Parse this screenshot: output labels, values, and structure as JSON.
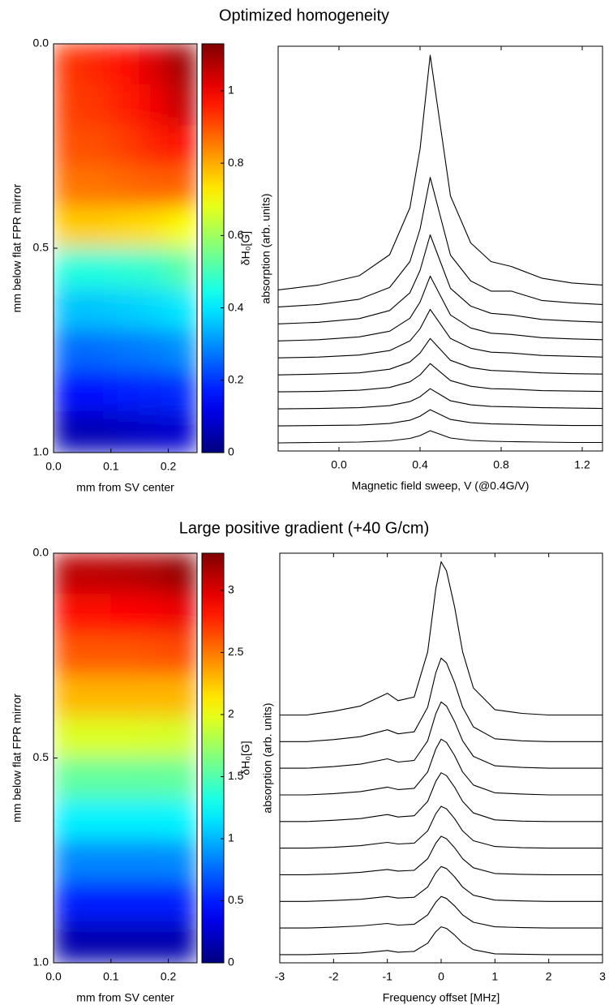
{
  "chart_data": [
    {
      "type": "heatmap",
      "title": "Optimized homogeneity",
      "xlabel": "mm from SV center",
      "ylabel": "mm below flat FPR mirror",
      "colormap": "jet",
      "y_inverted": true,
      "x": [
        0.025,
        0.075,
        0.125,
        0.175,
        0.225
      ],
      "y": [
        0.05,
        0.15,
        0.25,
        0.35,
        0.45,
        0.55,
        0.65,
        0.75,
        0.85,
        0.95
      ],
      "z": [
        [
          0.93,
          0.95,
          0.98,
          1.03,
          1.1
        ],
        [
          0.92,
          0.93,
          0.96,
          1.0,
          1.06
        ],
        [
          0.9,
          0.9,
          0.92,
          0.95,
          0.98
        ],
        [
          0.86,
          0.86,
          0.87,
          0.88,
          0.88
        ],
        [
          0.76,
          0.76,
          0.75,
          0.74,
          0.7
        ],
        [
          0.46,
          0.46,
          0.47,
          0.48,
          0.52
        ],
        [
          0.36,
          0.36,
          0.37,
          0.38,
          0.4
        ],
        [
          0.26,
          0.26,
          0.27,
          0.28,
          0.3
        ],
        [
          0.16,
          0.16,
          0.17,
          0.18,
          0.19
        ],
        [
          0.06,
          0.06,
          0.07,
          0.08,
          0.09
        ]
      ],
      "xlim": [
        0,
        0.25
      ],
      "xticks": [
        {
          "value": 0,
          "label": "0.0"
        },
        0.1,
        0.2
      ],
      "ylim": [
        0,
        1
      ],
      "yticks": [
        {
          "value": 0,
          "label": "0.0"
        },
        0.5,
        {
          "value": 1,
          "label": "1.0"
        }
      ],
      "colorbar": {
        "label": "δH₀[G]",
        "zlim": [
          0,
          1.13
        ],
        "ticks": [
          0,
          0.2,
          0.4,
          0.6,
          0.8,
          1
        ]
      }
    },
    {
      "type": "line",
      "xlabel": "Magnetic field sweep, V (@0.4G/V)",
      "ylabel": "absorption (arb. units)",
      "x": [
        -0.3,
        -0.1,
        0.1,
        0.25,
        0.35,
        0.4,
        0.45,
        0.5,
        0.55,
        0.65,
        0.75,
        0.85,
        1.0,
        1.15,
        1.3
      ],
      "xlim": [
        -0.3,
        1.3
      ],
      "xticks": [
        {
          "value": 0,
          "label": "0.0"
        },
        0.4,
        0.8,
        1.2
      ],
      "ylim": [
        0,
        100
      ],
      "series": [
        {
          "color": "#000000",
          "values": [
            2,
            2.1,
            2.2,
            2.5,
            3.1,
            3.8,
            5,
            4.1,
            3.2,
            2.6,
            2.4,
            2.3,
            2.2,
            2.1,
            2.1
          ]
        },
        {
          "color": "#000000",
          "values": [
            6.2,
            6.3,
            6.4,
            6.8,
            7.6,
            8.6,
            10.2,
            9,
            7.8,
            7,
            6.7,
            6.6,
            6.4,
            6.3,
            6.3
          ]
        },
        {
          "color": "#000000",
          "values": [
            10.4,
            10.5,
            10.7,
            11.2,
            12.2,
            13.4,
            15.4,
            13.9,
            12.4,
            11.4,
            11,
            10.9,
            10.7,
            10.6,
            10.5
          ]
        },
        {
          "color": "#000000",
          "values": [
            14.6,
            14.7,
            15,
            15.7,
            17.1,
            18.8,
            21.6,
            19.5,
            17.4,
            16,
            15.4,
            15.3,
            14.9,
            14.8,
            14.7
          ]
        },
        {
          "color": "#000000",
          "values": [
            18.8,
            19,
            19.3,
            20.2,
            22,
            24.2,
            27.8,
            25.1,
            22.4,
            20.6,
            19.9,
            19.7,
            19.3,
            19.1,
            19
          ]
        },
        {
          "color": "#000000",
          "values": [
            23,
            23.2,
            23.7,
            24.8,
            27.2,
            30.2,
            35,
            31.4,
            27.8,
            25.4,
            24.4,
            24.2,
            23.6,
            23.4,
            23.2
          ]
        },
        {
          "color": "#000000",
          "values": [
            27.2,
            27.5,
            28.2,
            29.6,
            32.8,
            36.8,
            43.2,
            38.4,
            33.6,
            30.4,
            29.1,
            28.8,
            28,
            27.7,
            27.5
          ]
        },
        {
          "color": "#000000",
          "values": [
            31.4,
            31.8,
            32.7,
            34.7,
            39.1,
            44.6,
            53.4,
            46.8,
            40.2,
            35.8,
            34,
            33.6,
            32.5,
            32.1,
            31.8
          ]
        },
        {
          "color": "#000000",
          "values": [
            35.6,
            36.2,
            37.5,
            40.4,
            46.8,
            54.8,
            67.6,
            58,
            48.4,
            42,
            39.5,
            39.5,
            37.2,
            36.6,
            36.2
          ]
        },
        {
          "color": "#000000",
          "values": [
            39.8,
            41,
            43.3,
            48.5,
            60.1,
            74.6,
            97.8,
            80.4,
            63,
            51.4,
            46.8,
            45.6,
            42.7,
            41.5,
            41
          ]
        }
      ]
    },
    {
      "type": "heatmap",
      "title": "Large positive gradient (+40 G/cm)",
      "xlabel": "mm from SV center",
      "ylabel": "mm below flat FPR mirror",
      "colormap": "jet",
      "y_inverted": true,
      "x": [
        0.025,
        0.075,
        0.125,
        0.175,
        0.225
      ],
      "y": [
        0.05,
        0.15,
        0.25,
        0.35,
        0.45,
        0.55,
        0.65,
        0.75,
        0.85,
        0.95
      ],
      "z": [
        [
          3.1,
          3.1,
          3.12,
          3.15,
          3.25
        ],
        [
          2.85,
          2.85,
          2.87,
          2.9,
          2.95
        ],
        [
          2.6,
          2.6,
          2.6,
          2.62,
          2.65
        ],
        [
          2.3,
          2.3,
          2.3,
          2.3,
          2.3
        ],
        [
          1.95,
          1.95,
          1.95,
          1.94,
          1.92
        ],
        [
          1.55,
          1.55,
          1.55,
          1.55,
          1.56
        ],
        [
          1.2,
          1.2,
          1.2,
          1.2,
          1.21
        ],
        [
          0.85,
          0.85,
          0.85,
          0.85,
          0.86
        ],
        [
          0.5,
          0.5,
          0.5,
          0.5,
          0.5
        ],
        [
          0.15,
          0.15,
          0.15,
          0.15,
          0.15
        ]
      ],
      "xlim": [
        0,
        0.25
      ],
      "xticks": [
        {
          "value": 0,
          "label": "0.0"
        },
        0.1,
        0.2
      ],
      "ylim": [
        0,
        1
      ],
      "yticks": [
        {
          "value": 0,
          "label": "0.0"
        },
        0.5,
        {
          "value": 1,
          "label": "1.0"
        }
      ],
      "colorbar": {
        "label": "δH₀[G]",
        "zlim": [
          0,
          3.3
        ],
        "ticks": [
          0,
          0.5,
          1,
          1.5,
          2,
          2.5,
          3
        ]
      }
    },
    {
      "type": "line",
      "xlabel": "Frequency offset [MHz]",
      "ylabel": "absorption (arb. units)",
      "x": [
        -3,
        -2.5,
        -2,
        -1.5,
        -1,
        -0.8,
        -0.5,
        -0.25,
        -0.1,
        0,
        0.1,
        0.25,
        0.4,
        0.6,
        1,
        1.5,
        2,
        3
      ],
      "xlim": [
        -3,
        3
      ],
      "xticks": [
        -3,
        -2,
        -1,
        0,
        1,
        2,
        3
      ],
      "ylim": [
        0,
        100
      ],
      "series": [
        {
          "color": "#000000",
          "values": [
            2,
            2,
            2.2,
            2.4,
            3,
            2.6,
            2.8,
            4.8,
            7.6,
            8.8,
            8.4,
            6.8,
            4.8,
            3.2,
            2.2,
            2.1,
            2,
            2
          ]
        },
        {
          "color": "#000000",
          "values": [
            8.5,
            8.5,
            8.7,
            9,
            9.6,
            9.2,
            9.4,
            11.7,
            14.8,
            16.2,
            15.7,
            13.9,
            11.7,
            9.9,
            8.8,
            8.6,
            8.5,
            8.5
          ]
        },
        {
          "color": "#000000",
          "values": [
            15,
            15,
            15.2,
            15.5,
            16.2,
            15.8,
            16,
            18.5,
            22,
            23.5,
            23,
            21,
            18.5,
            16.5,
            15.3,
            15.1,
            15,
            15
          ]
        },
        {
          "color": "#000000",
          "values": [
            21.5,
            21.5,
            21.7,
            22.1,
            22.8,
            22.4,
            22.6,
            25.4,
            29.2,
            30.9,
            30.3,
            28.1,
            25.4,
            23.2,
            21.8,
            21.6,
            21.5,
            21.5
          ]
        },
        {
          "color": "#000000",
          "values": [
            28,
            28,
            28.2,
            28.6,
            29.4,
            29,
            29.2,
            32.2,
            36.4,
            38.2,
            37.6,
            35.2,
            32.2,
            29.8,
            28.4,
            28.1,
            28,
            28
          ]
        },
        {
          "color": "#000000",
          "values": [
            34.5,
            34.5,
            34.8,
            35.2,
            36.2,
            35.6,
            35.9,
            39.4,
            44.3,
            46.4,
            45.7,
            42.9,
            39.4,
            36.6,
            34.9,
            34.6,
            34.5,
            34.5
          ]
        },
        {
          "color": "#000000",
          "values": [
            41,
            41,
            41.3,
            41.8,
            42.9,
            42.3,
            42.6,
            46.6,
            52.2,
            54.6,
            53.8,
            50.6,
            46.6,
            43.4,
            41.5,
            41.2,
            41,
            41
          ]
        },
        {
          "color": "#000000",
          "values": [
            47.5,
            47.5,
            47.9,
            48.5,
            49.8,
            49,
            49.4,
            54.2,
            60.8,
            63.7,
            62.7,
            58.9,
            54.2,
            50.4,
            48.1,
            47.7,
            47.5,
            47.5
          ]
        },
        {
          "color": "#000000",
          "values": [
            54,
            54,
            54.5,
            55.2,
            56.9,
            55.9,
            56.4,
            62.4,
            70.8,
            74.4,
            73.2,
            68.4,
            62.4,
            57.6,
            54.7,
            54.2,
            54,
            54
          ]
        },
        {
          "color": "#000000",
          "values": [
            60.5,
            60.5,
            61.4,
            62.7,
            65.8,
            64,
            64.9,
            75.9,
            91.3,
            97.9,
            95.7,
            86.9,
            75.9,
            67.1,
            61.8,
            60.9,
            60.5,
            60.5
          ]
        }
      ]
    }
  ]
}
